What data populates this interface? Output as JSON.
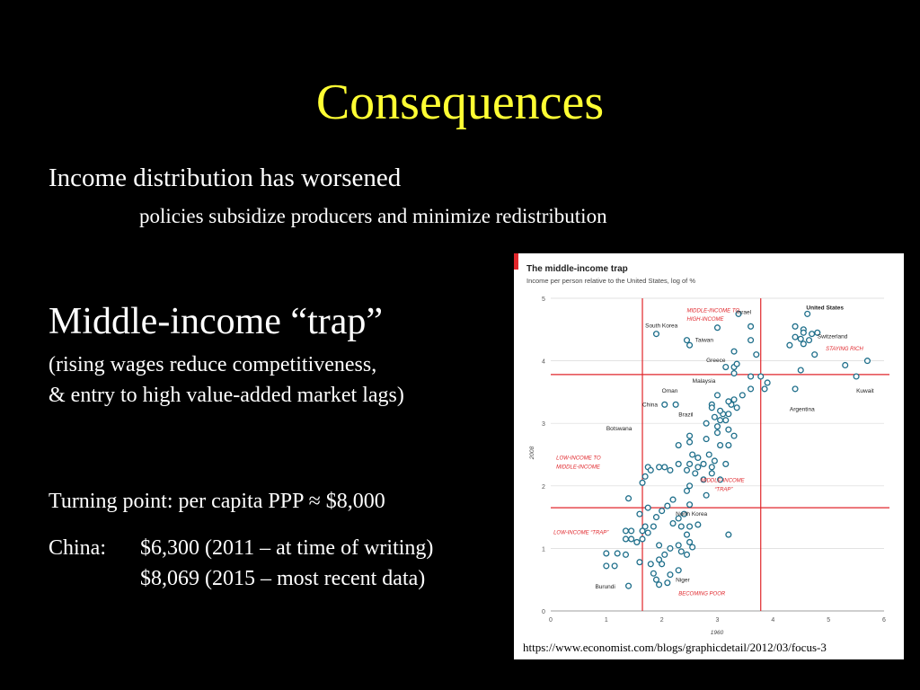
{
  "slide": {
    "title": "Consequences",
    "line1": "Income distribution has worsened",
    "line2": "policies subsidize producers and minimize redistribution",
    "heading2": "Middle-income “trap”",
    "sub1": "(rising wages reduce competitiveness,",
    "sub2": "& entry to high value-added market lags)",
    "turning": "Turning point:  per capita PPP ≈ $8,000",
    "china_label": "China:",
    "china_v1": "$6,300 (2011 – at time of writing)",
    "china_v2": "$8,069 (2015 – most recent data)",
    "source": "https://www.economist.com/blogs/graphicdetail/2012/03/focus-3"
  },
  "chart_data": {
    "type": "scatter",
    "title": "The middle-income trap",
    "subtitle": "Income per person relative to the United States, log of %",
    "xlabel": "1960",
    "ylabel": "2008",
    "xlim": [
      0,
      6
    ],
    "ylim": [
      0,
      5
    ],
    "xticks": [
      "0",
      "1",
      "2",
      "3",
      "4",
      "5",
      "6"
    ],
    "yticks": [
      "0",
      "1",
      "2",
      "3",
      "4",
      "5"
    ],
    "vlines": [
      1.65,
      3.78
    ],
    "hlines": [
      1.65,
      3.78
    ],
    "colors": {
      "accent": "#e0262b",
      "point": "#1f6f8b",
      "zone": "#e0262b"
    },
    "zone_labels": [
      {
        "text": "MIDDLE-INCOME TO",
        "x": 2.45,
        "y": 4.78
      },
      {
        "text": "HIGH-INCOME",
        "x": 2.45,
        "y": 4.64
      },
      {
        "text": "STAYING RICH",
        "x": 4.95,
        "y": 4.17
      },
      {
        "text": "LOW-INCOME TO",
        "x": 0.1,
        "y": 2.42
      },
      {
        "text": "MIDDLE-INCOME",
        "x": 0.1,
        "y": 2.28
      },
      {
        "text": "MIDDLE-INCOME",
        "x": 2.7,
        "y": 2.06
      },
      {
        "text": "“TRAP”",
        "x": 2.95,
        "y": 1.92
      },
      {
        "text": "LOW-INCOME “TRAP”",
        "x": 0.05,
        "y": 1.23
      },
      {
        "text": "BECOMING POOR",
        "x": 2.3,
        "y": 0.25
      }
    ],
    "annotations": [
      {
        "text": "United States",
        "x": 4.6,
        "y": 4.82
      },
      {
        "text": "Israel",
        "x": 3.35,
        "y": 4.75
      },
      {
        "text": "South Korea",
        "x": 1.7,
        "y": 4.53
      },
      {
        "text": "Taiwan",
        "x": 2.6,
        "y": 4.3
      },
      {
        "text": "Switzerland",
        "x": 4.8,
        "y": 4.36
      },
      {
        "text": "Greece",
        "x": 2.8,
        "y": 3.98
      },
      {
        "text": "Malaysia",
        "x": 2.55,
        "y": 3.65
      },
      {
        "text": "Oman",
        "x": 2.0,
        "y": 3.49
      },
      {
        "text": "Kuwait",
        "x": 5.5,
        "y": 3.49
      },
      {
        "text": "China",
        "x": 1.65,
        "y": 3.27
      },
      {
        "text": "Argentina",
        "x": 4.3,
        "y": 3.2
      },
      {
        "text": "Brazil",
        "x": 2.3,
        "y": 3.11
      },
      {
        "text": "Botswana",
        "x": 1.0,
        "y": 2.89
      },
      {
        "text": "North Korea",
        "x": 2.25,
        "y": 1.52
      },
      {
        "text": "Niger",
        "x": 2.25,
        "y": 0.47
      },
      {
        "text": "Burundi",
        "x": 0.8,
        "y": 0.36
      }
    ],
    "points": [
      [
        1.9,
        4.43
      ],
      [
        2.5,
        4.25
      ],
      [
        2.45,
        4.33
      ],
      [
        3.38,
        4.75
      ],
      [
        3.6,
        4.55
      ],
      [
        3.0,
        4.53
      ],
      [
        3.6,
        4.33
      ],
      [
        4.62,
        4.75
      ],
      [
        4.4,
        4.55
      ],
      [
        4.55,
        4.5
      ],
      [
        4.7,
        4.43
      ],
      [
        4.55,
        4.45
      ],
      [
        4.4,
        4.38
      ],
      [
        4.5,
        4.35
      ],
      [
        4.65,
        4.33
      ],
      [
        4.8,
        4.45
      ],
      [
        4.3,
        4.25
      ],
      [
        4.55,
        4.27
      ],
      [
        4.75,
        4.1
      ],
      [
        3.7,
        4.1
      ],
      [
        4.5,
        3.85
      ],
      [
        5.3,
        3.93
      ],
      [
        5.7,
        4.0
      ],
      [
        5.5,
        3.75
      ],
      [
        3.3,
        3.9
      ],
      [
        3.35,
        3.95
      ],
      [
        3.3,
        4.15
      ],
      [
        3.15,
        3.9
      ],
      [
        3.3,
        3.8
      ],
      [
        3.6,
        3.75
      ],
      [
        3.78,
        3.75
      ],
      [
        3.9,
        3.65
      ],
      [
        3.85,
        3.55
      ],
      [
        4.4,
        3.55
      ],
      [
        3.6,
        3.55
      ],
      [
        3.45,
        3.45
      ],
      [
        3.3,
        3.38
      ],
      [
        3.25,
        3.3
      ],
      [
        3.2,
        3.35
      ],
      [
        3.35,
        3.25
      ],
      [
        3.0,
        3.45
      ],
      [
        2.9,
        3.3
      ],
      [
        2.05,
        3.3
      ],
      [
        2.25,
        3.3
      ],
      [
        2.95,
        3.1
      ],
      [
        3.05,
        3.05
      ],
      [
        3.15,
        3.05
      ],
      [
        3.1,
        3.15
      ],
      [
        3.2,
        3.15
      ],
      [
        3.05,
        3.2
      ],
      [
        2.9,
        3.25
      ],
      [
        2.8,
        3.0
      ],
      [
        3.0,
        2.95
      ],
      [
        3.0,
        2.85
      ],
      [
        3.2,
        2.9
      ],
      [
        3.3,
        2.8
      ],
      [
        2.5,
        2.8
      ],
      [
        2.5,
        2.7
      ],
      [
        2.3,
        2.65
      ],
      [
        2.8,
        2.75
      ],
      [
        3.05,
        2.65
      ],
      [
        3.2,
        2.65
      ],
      [
        2.85,
        2.5
      ],
      [
        2.55,
        2.5
      ],
      [
        2.65,
        2.45
      ],
      [
        2.3,
        2.35
      ],
      [
        2.5,
        2.35
      ],
      [
        2.75,
        2.35
      ],
      [
        2.95,
        2.4
      ],
      [
        2.65,
        2.3
      ],
      [
        2.9,
        2.3
      ],
      [
        3.15,
        2.35
      ],
      [
        2.45,
        2.25
      ],
      [
        1.95,
        2.3
      ],
      [
        2.05,
        2.3
      ],
      [
        2.15,
        2.25
      ],
      [
        1.75,
        2.3
      ],
      [
        1.8,
        2.25
      ],
      [
        2.6,
        2.2
      ],
      [
        2.9,
        2.2
      ],
      [
        3.05,
        2.1
      ],
      [
        2.75,
        2.1
      ],
      [
        1.7,
        2.15
      ],
      [
        1.65,
        2.05
      ],
      [
        2.5,
        2.0
      ],
      [
        2.45,
        1.92
      ],
      [
        2.8,
        1.85
      ],
      [
        1.4,
        1.8
      ],
      [
        2.2,
        1.78
      ],
      [
        2.1,
        1.68
      ],
      [
        2.5,
        1.7
      ],
      [
        1.75,
        1.65
      ],
      [
        1.6,
        1.55
      ],
      [
        2.0,
        1.6
      ],
      [
        1.9,
        1.5
      ],
      [
        2.4,
        1.55
      ],
      [
        2.3,
        1.48
      ],
      [
        2.2,
        1.4
      ],
      [
        1.85,
        1.35
      ],
      [
        2.65,
        1.38
      ],
      [
        2.5,
        1.35
      ],
      [
        1.65,
        1.28
      ],
      [
        1.7,
        1.35
      ],
      [
        1.75,
        1.25
      ],
      [
        1.65,
        1.15
      ],
      [
        2.35,
        1.35
      ],
      [
        2.45,
        1.22
      ],
      [
        2.5,
        1.1
      ],
      [
        3.2,
        1.22
      ],
      [
        1.35,
        1.28
      ],
      [
        1.45,
        1.28
      ],
      [
        1.35,
        1.15
      ],
      [
        1.45,
        1.15
      ],
      [
        1.55,
        1.1
      ],
      [
        1.95,
        1.05
      ],
      [
        2.3,
        1.05
      ],
      [
        2.55,
        1.02
      ],
      [
        2.15,
        1.0
      ],
      [
        2.35,
        0.95
      ],
      [
        1.2,
        0.92
      ],
      [
        1.35,
        0.9
      ],
      [
        2.05,
        0.9
      ],
      [
        2.45,
        0.9
      ],
      [
        1.95,
        0.82
      ],
      [
        1.8,
        0.75
      ],
      [
        1.6,
        0.78
      ],
      [
        1.0,
        0.92
      ],
      [
        1.0,
        0.72
      ],
      [
        1.15,
        0.72
      ],
      [
        2.0,
        0.75
      ],
      [
        1.85,
        0.6
      ],
      [
        2.3,
        0.65
      ],
      [
        1.9,
        0.5
      ],
      [
        2.1,
        0.45
      ],
      [
        1.95,
        0.42
      ],
      [
        1.4,
        0.4
      ],
      [
        2.15,
        0.58
      ]
    ]
  }
}
